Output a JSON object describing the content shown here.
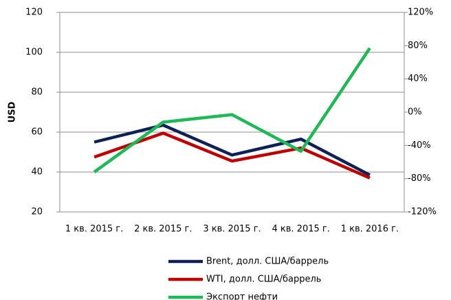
{
  "chart_data": {
    "type": "line",
    "y_label": "USD",
    "categories": [
      "1 кв. 2015 г.",
      "2 кв. 2015 г.",
      "3 кв. 2015 г.",
      "4 кв. 2015 г.",
      "1 кв. 2016 г."
    ],
    "series": [
      {
        "name": "Brent, долл. США/баррель",
        "color": "#0d2157",
        "values": [
          55,
          63.5,
          48.5,
          56.5,
          38.5
        ]
      },
      {
        "name": "WTI, долл. США/баррель",
        "color": "#c00000",
        "values": [
          47.5,
          59.5,
          45.5,
          52,
          37
        ]
      },
      {
        "name": "Экспорт нефти",
        "color": "#1db954",
        "axis": "y2",
        "values": [
          -72,
          -12,
          -3,
          -47,
          77
        ]
      }
    ],
    "ylim": [
      20,
      120
    ],
    "yticks": [
      20,
      40,
      60,
      80,
      100,
      120
    ],
    "y2lim": [
      -120,
      120
    ],
    "y2ticks": [
      {
        "value": -120,
        "label": "-120%"
      },
      {
        "value": -80,
        "label": "-80%"
      },
      {
        "value": -40,
        "label": "-40%"
      },
      {
        "value": 0,
        "label": "0%"
      },
      {
        "value": 40,
        "label": "40%"
      },
      {
        "value": 80,
        "label": "80%"
      },
      {
        "value": 120,
        "label": "120%"
      }
    ],
    "grid": true
  }
}
